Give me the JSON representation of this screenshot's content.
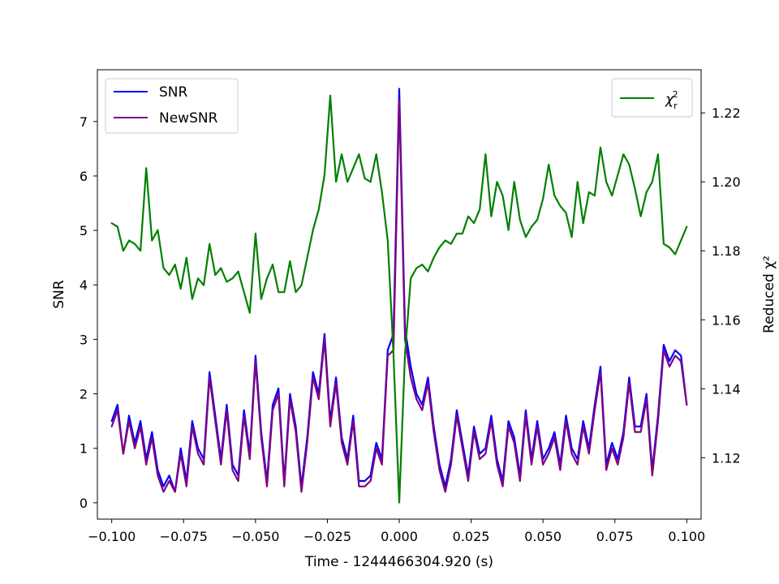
{
  "chart_data": {
    "type": "line",
    "xlabel": "Time - 1244466304.920 (s)",
    "ylabel_left": "SNR",
    "ylabel_right": "Reduced χ²",
    "xlim": [
      -0.105,
      0.105
    ],
    "ylim_left": [
      -0.3,
      7.95
    ],
    "ylim_right": [
      1.1022,
      1.2325
    ],
    "x_ticks": [
      -0.1,
      -0.075,
      -0.05,
      -0.025,
      0.0,
      0.025,
      0.05,
      0.075,
      0.1
    ],
    "x_tick_labels": [
      "−0.100",
      "−0.075",
      "−0.050",
      "−0.025",
      "0.000",
      "0.025",
      "0.050",
      "0.075",
      "0.100"
    ],
    "y_left_ticks": [
      0,
      1,
      2,
      3,
      4,
      5,
      6,
      7
    ],
    "y_left_tick_labels": [
      "0",
      "1",
      "2",
      "3",
      "4",
      "5",
      "6",
      "7"
    ],
    "y_right_ticks": [
      1.12,
      1.14,
      1.16,
      1.18,
      1.2,
      1.22
    ],
    "y_right_tick_labels": [
      "1.12",
      "1.14",
      "1.16",
      "1.18",
      "1.20",
      "1.22"
    ],
    "grid": false,
    "legend_left": {
      "placement": "top-left",
      "entries": [
        "SNR",
        "NewSNR"
      ]
    },
    "legend_right": {
      "placement": "top-right",
      "entries": [
        "χ²_r"
      ]
    },
    "series": [
      {
        "name": "SNR",
        "axis": "left",
        "color": "#0000ff",
        "x": [
          -0.1,
          -0.098,
          -0.096,
          -0.094,
          -0.092,
          -0.09,
          -0.088,
          -0.086,
          -0.084,
          -0.082,
          -0.08,
          -0.078,
          -0.076,
          -0.074,
          -0.072,
          -0.07,
          -0.068,
          -0.066,
          -0.064,
          -0.062,
          -0.06,
          -0.058,
          -0.056,
          -0.054,
          -0.052,
          -0.05,
          -0.048,
          -0.046,
          -0.044,
          -0.042,
          -0.04,
          -0.038,
          -0.036,
          -0.034,
          -0.032,
          -0.03,
          -0.028,
          -0.026,
          -0.024,
          -0.022,
          -0.02,
          -0.018,
          -0.016,
          -0.014,
          -0.012,
          -0.01,
          -0.008,
          -0.006,
          -0.004,
          -0.002,
          0.0,
          0.002,
          0.004,
          0.006,
          0.008,
          0.01,
          0.012,
          0.014,
          0.016,
          0.018,
          0.02,
          0.022,
          0.024,
          0.026,
          0.028,
          0.03,
          0.032,
          0.034,
          0.036,
          0.038,
          0.04,
          0.042,
          0.044,
          0.046,
          0.048,
          0.05,
          0.052,
          0.054,
          0.056,
          0.058,
          0.06,
          0.062,
          0.064,
          0.066,
          0.068,
          0.07,
          0.072,
          0.074,
          0.076,
          0.078,
          0.08,
          0.082,
          0.084,
          0.086,
          0.088,
          0.09,
          0.092,
          0.094,
          0.096,
          0.098,
          0.1
        ],
        "y": [
          1.5,
          1.8,
          0.9,
          1.6,
          1.1,
          1.5,
          0.8,
          1.3,
          0.6,
          0.3,
          0.5,
          0.2,
          1.0,
          0.4,
          1.5,
          1.0,
          0.8,
          2.4,
          1.6,
          0.8,
          1.8,
          0.7,
          0.5,
          1.7,
          0.9,
          2.7,
          1.3,
          0.4,
          1.8,
          2.1,
          0.4,
          2.0,
          1.4,
          0.3,
          1.2,
          2.4,
          2.0,
          3.1,
          1.5,
          2.3,
          1.2,
          0.8,
          1.6,
          0.4,
          0.4,
          0.5,
          1.1,
          0.8,
          2.8,
          3.1,
          7.6,
          3.2,
          2.5,
          2.0,
          1.8,
          2.3,
          1.4,
          0.7,
          0.3,
          0.8,
          1.7,
          1.1,
          0.5,
          1.4,
          0.9,
          1.0,
          1.6,
          0.8,
          0.4,
          1.5,
          1.2,
          0.5,
          1.7,
          0.8,
          1.5,
          0.8,
          1.0,
          1.3,
          0.7,
          1.6,
          1.0,
          0.8,
          1.5,
          1.0,
          1.8,
          2.5,
          0.7,
          1.1,
          0.8,
          1.3,
          2.3,
          1.4,
          1.4,
          2.0,
          0.6,
          1.6,
          2.9,
          2.6,
          2.8,
          2.7,
          1.8
        ]
      },
      {
        "name": "NewSNR",
        "axis": "left",
        "color": "#800080",
        "x": [
          -0.1,
          -0.098,
          -0.096,
          -0.094,
          -0.092,
          -0.09,
          -0.088,
          -0.086,
          -0.084,
          -0.082,
          -0.08,
          -0.078,
          -0.076,
          -0.074,
          -0.072,
          -0.07,
          -0.068,
          -0.066,
          -0.064,
          -0.062,
          -0.06,
          -0.058,
          -0.056,
          -0.054,
          -0.052,
          -0.05,
          -0.048,
          -0.046,
          -0.044,
          -0.042,
          -0.04,
          -0.038,
          -0.036,
          -0.034,
          -0.032,
          -0.03,
          -0.028,
          -0.026,
          -0.024,
          -0.022,
          -0.02,
          -0.018,
          -0.016,
          -0.014,
          -0.012,
          -0.01,
          -0.008,
          -0.006,
          -0.004,
          -0.002,
          0.0,
          0.002,
          0.004,
          0.006,
          0.008,
          0.01,
          0.012,
          0.014,
          0.016,
          0.018,
          0.02,
          0.022,
          0.024,
          0.026,
          0.028,
          0.03,
          0.032,
          0.034,
          0.036,
          0.038,
          0.04,
          0.042,
          0.044,
          0.046,
          0.048,
          0.05,
          0.052,
          0.054,
          0.056,
          0.058,
          0.06,
          0.062,
          0.064,
          0.066,
          0.068,
          0.07,
          0.072,
          0.074,
          0.076,
          0.078,
          0.08,
          0.082,
          0.084,
          0.086,
          0.088,
          0.09,
          0.092,
          0.094,
          0.096,
          0.098,
          0.1
        ],
        "y": [
          1.4,
          1.7,
          0.9,
          1.5,
          1.0,
          1.4,
          0.7,
          1.2,
          0.5,
          0.2,
          0.4,
          0.2,
          0.9,
          0.3,
          1.4,
          0.9,
          0.7,
          2.3,
          1.5,
          0.7,
          1.7,
          0.6,
          0.4,
          1.6,
          0.8,
          2.6,
          1.2,
          0.3,
          1.7,
          2.0,
          0.3,
          1.9,
          1.3,
          0.2,
          1.1,
          2.3,
          1.9,
          3.0,
          1.4,
          2.2,
          1.1,
          0.7,
          1.5,
          0.3,
          0.3,
          0.4,
          1.0,
          0.7,
          2.7,
          2.8,
          7.4,
          3.0,
          2.3,
          1.9,
          1.7,
          2.2,
          1.3,
          0.6,
          0.2,
          0.7,
          1.6,
          1.0,
          0.4,
          1.3,
          0.8,
          0.9,
          1.5,
          0.7,
          0.3,
          1.4,
          1.1,
          0.4,
          1.6,
          0.7,
          1.4,
          0.7,
          0.9,
          1.2,
          0.6,
          1.5,
          0.9,
          0.7,
          1.4,
          0.9,
          1.7,
          2.4,
          0.6,
          1.0,
          0.7,
          1.2,
          2.2,
          1.3,
          1.3,
          1.9,
          0.5,
          1.5,
          2.8,
          2.5,
          2.7,
          2.6,
          1.8
        ]
      },
      {
        "name": "χ²_r",
        "axis": "right",
        "color": "#008000",
        "x": [
          -0.1,
          -0.098,
          -0.096,
          -0.094,
          -0.092,
          -0.09,
          -0.088,
          -0.086,
          -0.084,
          -0.082,
          -0.08,
          -0.078,
          -0.076,
          -0.074,
          -0.072,
          -0.07,
          -0.068,
          -0.066,
          -0.064,
          -0.062,
          -0.06,
          -0.058,
          -0.056,
          -0.054,
          -0.052,
          -0.05,
          -0.048,
          -0.046,
          -0.044,
          -0.042,
          -0.04,
          -0.038,
          -0.036,
          -0.034,
          -0.032,
          -0.03,
          -0.028,
          -0.026,
          -0.024,
          -0.022,
          -0.02,
          -0.018,
          -0.016,
          -0.014,
          -0.012,
          -0.01,
          -0.008,
          -0.006,
          -0.004,
          -0.002,
          0.0,
          0.002,
          0.004,
          0.006,
          0.008,
          0.01,
          0.012,
          0.014,
          0.016,
          0.018,
          0.02,
          0.022,
          0.024,
          0.026,
          0.028,
          0.03,
          0.032,
          0.034,
          0.036,
          0.038,
          0.04,
          0.042,
          0.044,
          0.046,
          0.048,
          0.05,
          0.052,
          0.054,
          0.056,
          0.058,
          0.06,
          0.062,
          0.064,
          0.066,
          0.068,
          0.07,
          0.072,
          0.074,
          0.076,
          0.078,
          0.08,
          0.082,
          0.084,
          0.086,
          0.088,
          0.09,
          0.092,
          0.094,
          0.096,
          0.098,
          0.1
        ],
        "y": [
          1.188,
          1.187,
          1.18,
          1.183,
          1.182,
          1.18,
          1.204,
          1.183,
          1.186,
          1.175,
          1.173,
          1.176,
          1.169,
          1.178,
          1.166,
          1.172,
          1.17,
          1.182,
          1.173,
          1.175,
          1.171,
          1.172,
          1.174,
          1.168,
          1.162,
          1.185,
          1.166,
          1.172,
          1.176,
          1.168,
          1.168,
          1.177,
          1.168,
          1.17,
          1.178,
          1.186,
          1.192,
          1.202,
          1.225,
          1.2,
          1.208,
          1.2,
          1.204,
          1.208,
          1.201,
          1.2,
          1.208,
          1.197,
          1.183,
          1.15,
          1.107,
          1.15,
          1.172,
          1.175,
          1.176,
          1.174,
          1.178,
          1.181,
          1.183,
          1.182,
          1.185,
          1.185,
          1.19,
          1.188,
          1.192,
          1.208,
          1.19,
          1.2,
          1.196,
          1.186,
          1.2,
          1.189,
          1.184,
          1.187,
          1.189,
          1.195,
          1.205,
          1.196,
          1.193,
          1.191,
          1.184,
          1.2,
          1.188,
          1.197,
          1.196,
          1.21,
          1.2,
          1.196,
          1.202,
          1.208,
          1.205,
          1.198,
          1.19,
          1.197,
          1.2,
          1.208,
          1.182,
          1.181,
          1.179,
          1.183,
          1.187
        ]
      }
    ]
  }
}
